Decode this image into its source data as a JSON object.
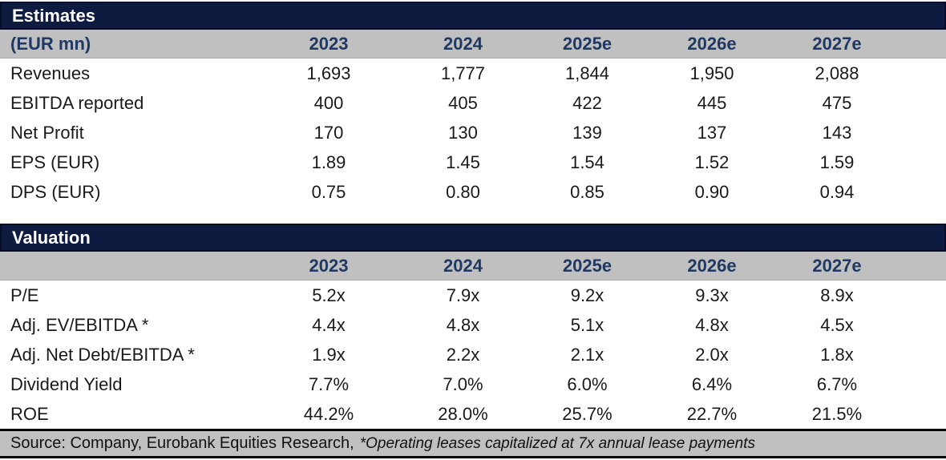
{
  "tables": [
    {
      "title": "Estimates",
      "subtitle": "(EUR mn)",
      "columns": [
        "2023",
        "2024",
        "2025e",
        "2026e",
        "2027e"
      ],
      "rows": [
        {
          "label": "Revenues",
          "values": [
            "1,693",
            "1,777",
            "1,844",
            "1,950",
            "2,088"
          ]
        },
        {
          "label": "EBITDA reported",
          "values": [
            "400",
            "405",
            "422",
            "445",
            "475"
          ]
        },
        {
          "label": "Net Profit",
          "values": [
            "170",
            "130",
            "139",
            "137",
            "143"
          ]
        },
        {
          "label": "EPS (EUR)",
          "values": [
            "1.89",
            "1.45",
            "1.54",
            "1.52",
            "1.59"
          ]
        },
        {
          "label": "DPS (EUR)",
          "values": [
            "0.75",
            "0.80",
            "0.85",
            "0.90",
            "0.94"
          ]
        }
      ]
    },
    {
      "title": "Valuation",
      "subtitle": "",
      "columns": [
        "2023",
        "2024",
        "2025e",
        "2026e",
        "2027e"
      ],
      "rows": [
        {
          "label": "P/E",
          "values": [
            "5.2x",
            "7.9x",
            "9.2x",
            "9.3x",
            "8.9x"
          ]
        },
        {
          "label": "Adj. EV/EBITDA *",
          "values": [
            "4.4x",
            "4.8x",
            "5.1x",
            "4.8x",
            "4.5x"
          ]
        },
        {
          "label": "Adj. Net Debt/EBITDA *",
          "values": [
            "1.9x",
            "2.2x",
            "2.1x",
            "2.0x",
            "1.8x"
          ]
        },
        {
          "label": "Dividend Yield",
          "values": [
            "7.7%",
            "7.0%",
            "6.0%",
            "6.4%",
            "6.7%"
          ]
        },
        {
          "label": "ROE",
          "values": [
            "44.2%",
            "28.0%",
            "25.7%",
            "22.7%",
            "21.5%"
          ]
        }
      ]
    }
  ],
  "footer": {
    "source_text": "Source: Company, Eurobank Equities Research,",
    "footnote_text": "*Operating leases capitalized at 7x annual lease payments"
  },
  "colors": {
    "navy_band": "#0e1b40",
    "navy_band_border": "#070d24",
    "header_gray": "#c0c0c0",
    "header_text_navy": "#1f3864",
    "body_text": "#1a1a1a"
  }
}
